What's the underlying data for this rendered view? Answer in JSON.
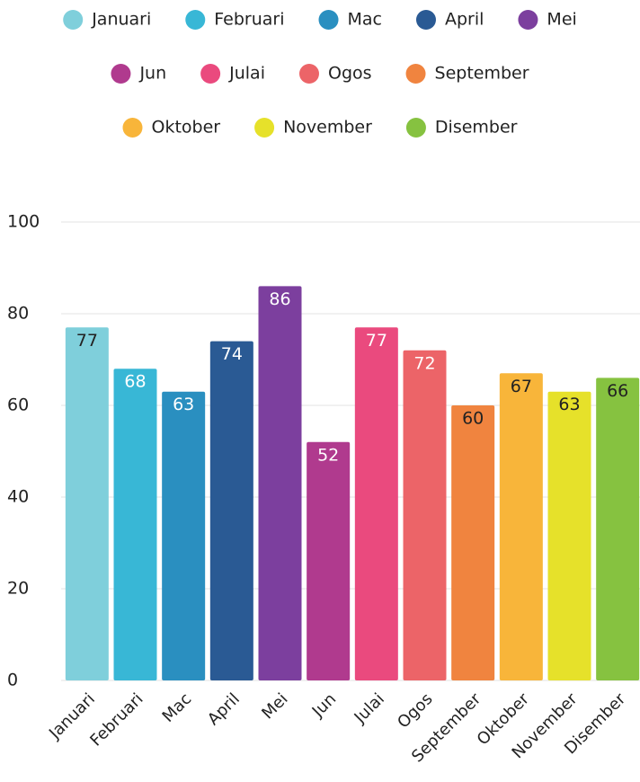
{
  "chart_data": {
    "type": "bar",
    "categories": [
      "Januari",
      "Februari",
      "Mac",
      "April",
      "Mei",
      "Jun",
      "Julai",
      "Ogos",
      "September",
      "Oktober",
      "November",
      "Disember"
    ],
    "values": [
      77,
      68,
      63,
      74,
      86,
      52,
      77,
      72,
      60,
      67,
      63,
      66
    ],
    "colors": [
      "#7fcfdb",
      "#38b7d6",
      "#2a8fc0",
      "#2a5a94",
      "#7c3f9e",
      "#b03a8e",
      "#ea4a7e",
      "#ec6468",
      "#f0843f",
      "#f8b53a",
      "#e6e12a",
      "#86c240"
    ],
    "ylim": [
      0,
      100
    ],
    "yticks": [
      0,
      20,
      40,
      60,
      80,
      100
    ],
    "grid": true,
    "legend": "top"
  }
}
